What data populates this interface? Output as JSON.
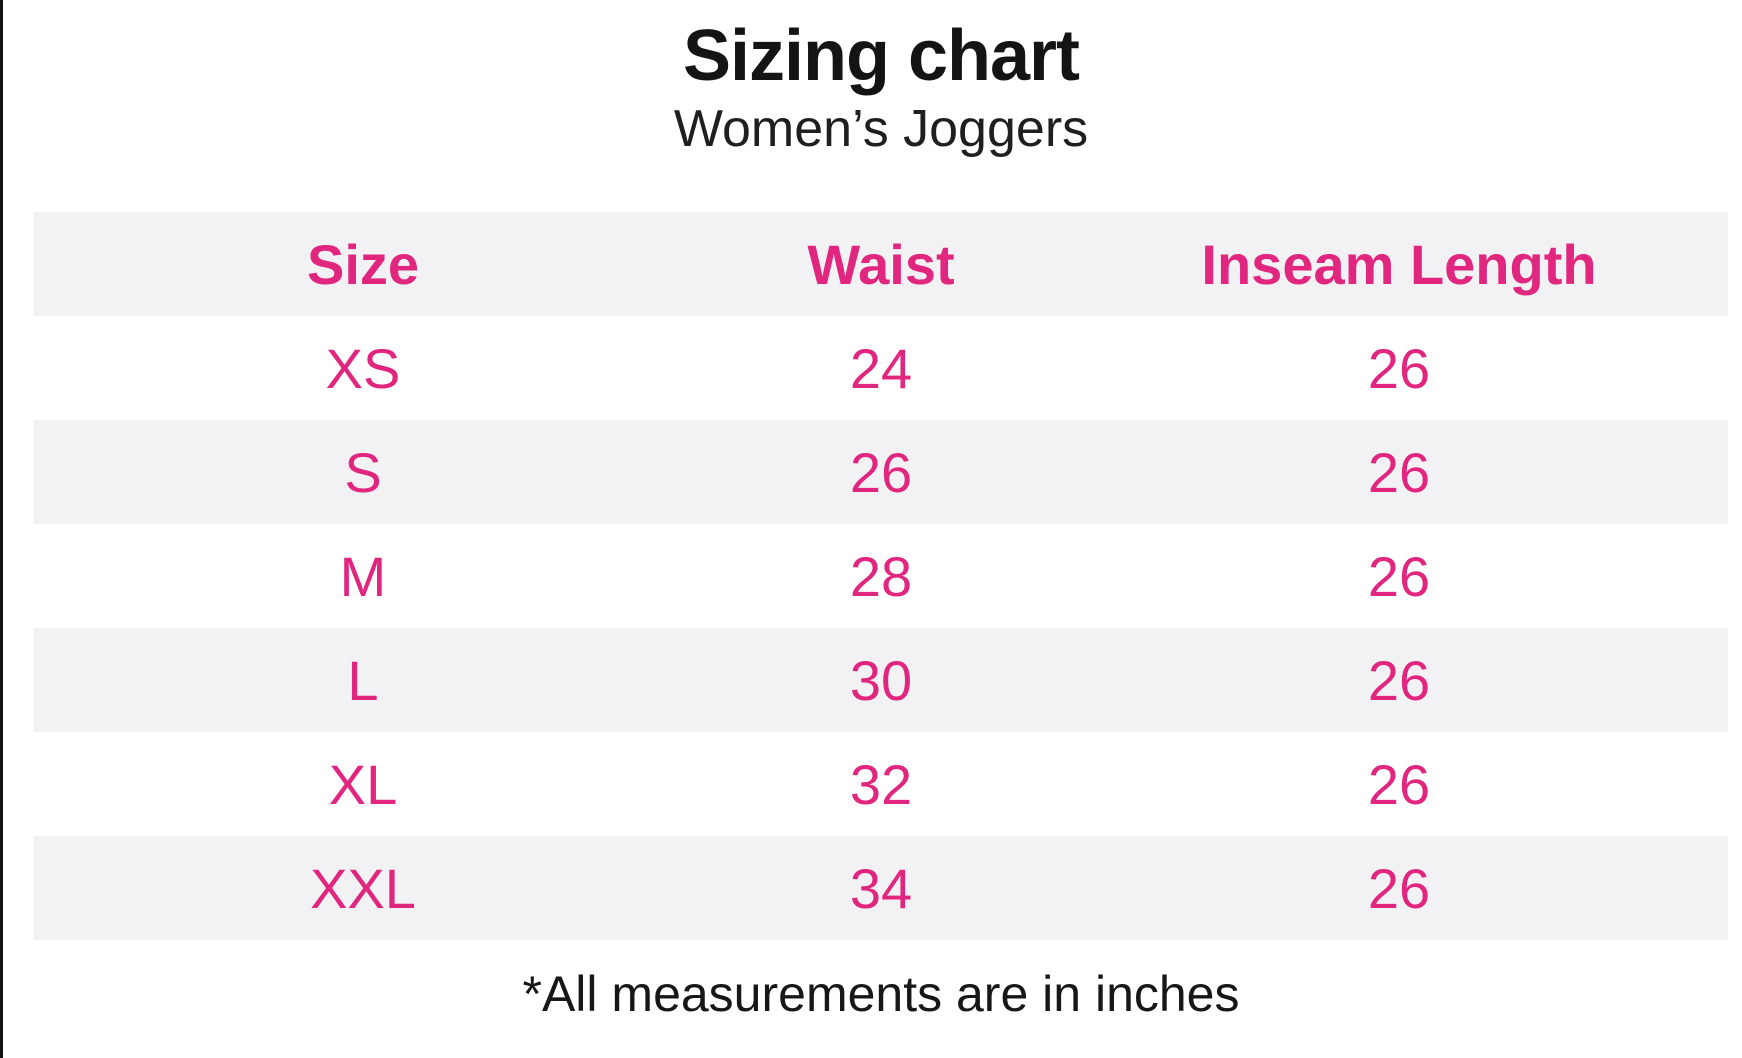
{
  "title": "Sizing chart",
  "subtitle": "Women’s Joggers",
  "footnote": "*All measurements are in inches",
  "colors": {
    "accent_pink": "#e0267e",
    "row_alt_gray": "#f2f2f4",
    "text_black": "#141414",
    "left_border_black": "#121212"
  },
  "chart_data": {
    "type": "table",
    "title": "Sizing chart",
    "subtitle": "Women’s Joggers",
    "columns": [
      "Size",
      "Waist",
      "Inseam Length"
    ],
    "rows": [
      [
        "XS",
        "24",
        "26"
      ],
      [
        "S",
        "26",
        "26"
      ],
      [
        "M",
        "28",
        "26"
      ],
      [
        "L",
        "30",
        "26"
      ],
      [
        "XL",
        "32",
        "26"
      ],
      [
        "XXL",
        "34",
        "26"
      ]
    ],
    "footnote": "*All measurements are in inches",
    "layout": {
      "striped": true,
      "stripe_rows": [
        "header",
        "S",
        "L",
        "XXL"
      ],
      "text_alignment": "center"
    }
  }
}
